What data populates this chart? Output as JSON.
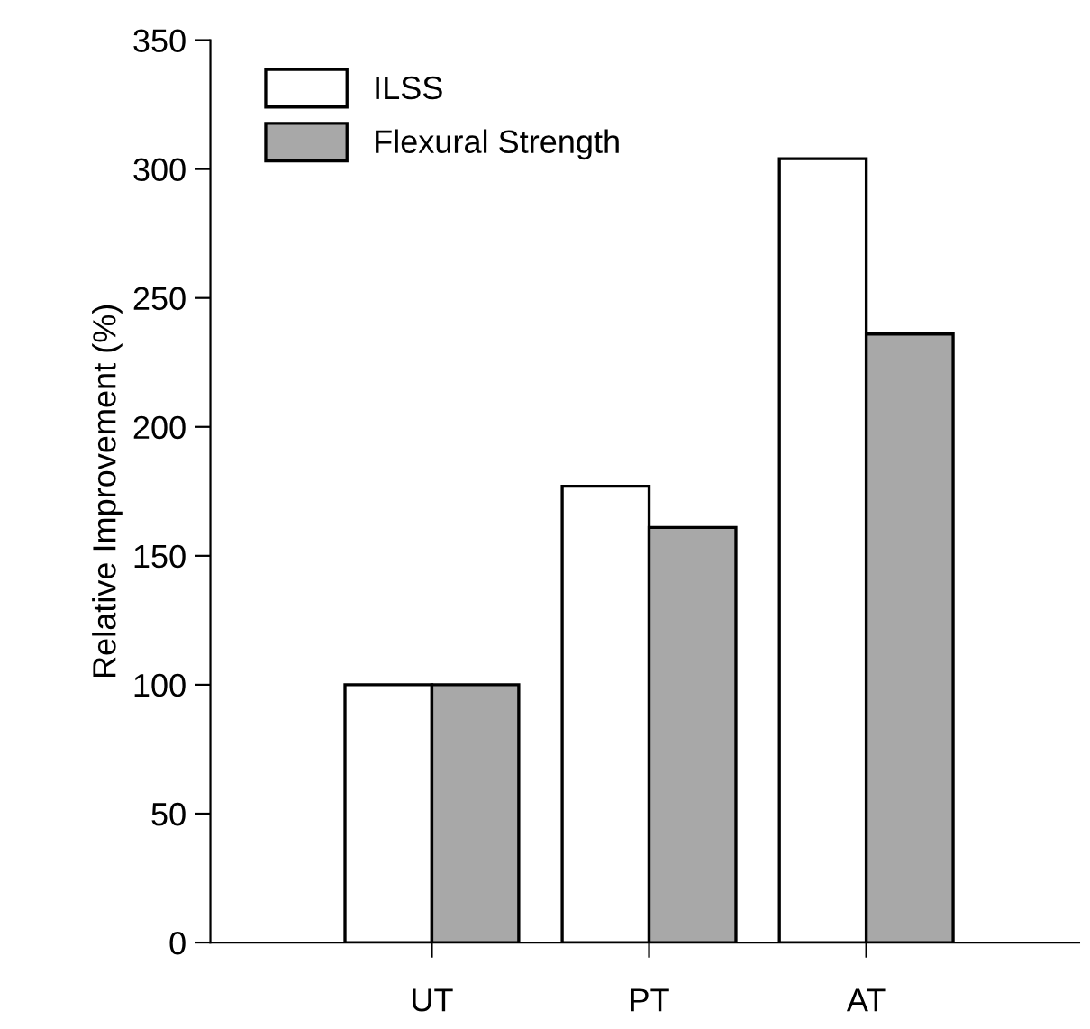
{
  "chart_data": {
    "type": "bar",
    "ylabel": "Relative Improvement (%)",
    "categories": [
      "UT",
      "PT",
      "AT"
    ],
    "series": [
      {
        "name": "ILSS",
        "color": "#ffffff",
        "values": [
          100,
          177,
          304
        ]
      },
      {
        "name": "Flexural Strength",
        "color": "#a8a8a8",
        "values": [
          100,
          161,
          236
        ]
      }
    ],
    "ylim": [
      0,
      350
    ],
    "yticks": [
      0,
      50,
      100,
      150,
      200,
      250,
      300,
      350
    ],
    "grid": false,
    "legend": "top left"
  }
}
